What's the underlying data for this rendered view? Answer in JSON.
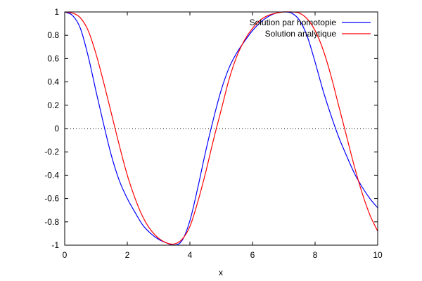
{
  "chart_data": {
    "type": "line",
    "title": "",
    "xlabel": "x",
    "ylabel": "",
    "xlim": [
      0,
      10
    ],
    "ylim": [
      -1,
      1
    ],
    "xticks": [
      "0",
      "2",
      "4",
      "6",
      "8",
      "10"
    ],
    "yticks": [
      "-1",
      "-0.8",
      "-0.6",
      "-0.4",
      "-0.2",
      "0",
      "0.2",
      "0.4",
      "0.6",
      "0.8",
      "1"
    ],
    "legend_position": "top-right",
    "zero_line": "dotted",
    "series": [
      {
        "name": "Solution par homotopie",
        "color": "#0000ff",
        "x": [
          0,
          0.25,
          0.5,
          0.75,
          1.0,
          1.25,
          1.5,
          1.75,
          2.0,
          2.25,
          2.5,
          2.75,
          3.0,
          3.25,
          3.5,
          3.75,
          4.0,
          4.25,
          4.5,
          4.75,
          5.0,
          5.25,
          5.5,
          5.75,
          6.0,
          6.25,
          6.5,
          6.75,
          7.0,
          7.25,
          7.5,
          7.75,
          8.0,
          8.25,
          8.5,
          8.75,
          9.0,
          9.25,
          9.5,
          9.75,
          10.0
        ],
        "y": [
          1.0,
          0.97,
          0.86,
          0.62,
          0.32,
          0.03,
          -0.24,
          -0.45,
          -0.6,
          -0.72,
          -0.83,
          -0.9,
          -0.95,
          -0.98,
          -1.0,
          -0.96,
          -0.79,
          -0.51,
          -0.2,
          0.08,
          0.33,
          0.52,
          0.65,
          0.75,
          0.84,
          0.91,
          0.96,
          0.99,
          1.0,
          0.99,
          0.93,
          0.79,
          0.57,
          0.33,
          0.12,
          -0.07,
          -0.23,
          -0.38,
          -0.5,
          -0.6,
          -0.68
        ]
      },
      {
        "name": "Solution analytique",
        "color": "#ff0000",
        "x": [
          0,
          0.25,
          0.5,
          0.75,
          1.0,
          1.25,
          1.5,
          1.75,
          2.0,
          2.25,
          2.5,
          2.75,
          3.0,
          3.25,
          3.5,
          3.75,
          4.0,
          4.25,
          4.5,
          4.75,
          5.0,
          5.25,
          5.5,
          5.75,
          6.0,
          6.25,
          6.5,
          6.75,
          7.0,
          7.25,
          7.5,
          7.75,
          8.0,
          8.25,
          8.5,
          8.75,
          9.0,
          9.25,
          9.5,
          9.75,
          10.0
        ],
        "y": [
          1.0,
          0.99,
          0.95,
          0.84,
          0.64,
          0.39,
          0.12,
          -0.15,
          -0.4,
          -0.6,
          -0.76,
          -0.87,
          -0.94,
          -0.98,
          -0.99,
          -0.95,
          -0.84,
          -0.63,
          -0.38,
          -0.1,
          0.16,
          0.42,
          0.62,
          0.76,
          0.86,
          0.93,
          0.97,
          0.99,
          1.0,
          1.0,
          0.99,
          0.94,
          0.84,
          0.68,
          0.46,
          0.2,
          -0.06,
          -0.32,
          -0.55,
          -0.74,
          -0.88
        ]
      }
    ]
  }
}
